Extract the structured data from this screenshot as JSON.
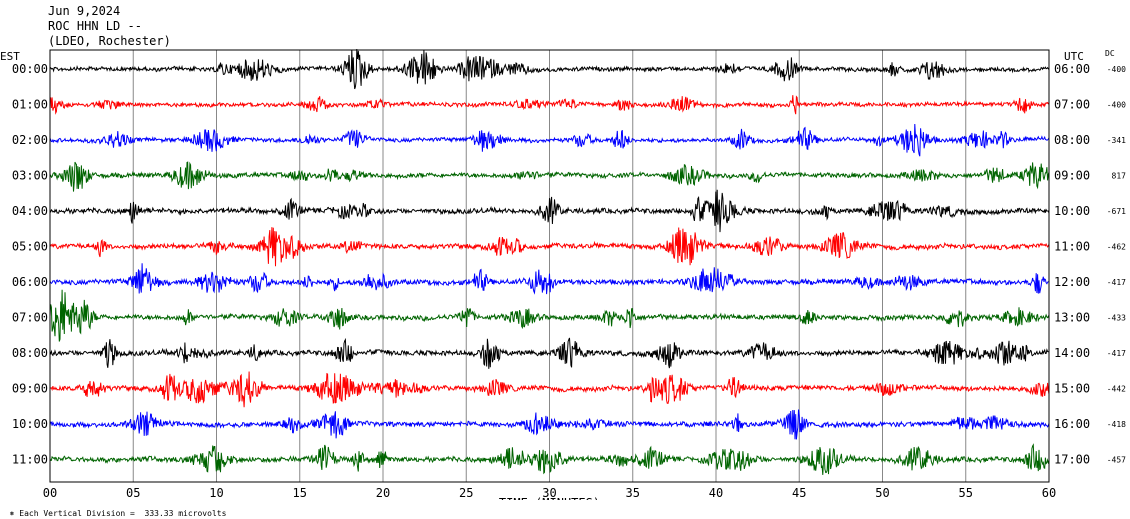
{
  "header": {
    "date": "Jun 9,2024",
    "station": "ROC HHN LD --",
    "network": "(LDEO, Rochester)"
  },
  "footer": {
    "division_note": "Each Vertical Division =  333.33 microvolts"
  },
  "chart_data": {
    "type": "line",
    "title": "",
    "xlabel": "TIME (MINUTES)",
    "left_axis_label": "EST",
    "right_axis_label": "UTC",
    "dc_label": "DC",
    "xlim": [
      0,
      60
    ],
    "x_ticks": [
      "00",
      "05",
      "10",
      "15",
      "20",
      "25",
      "30",
      "35",
      "40",
      "45",
      "50",
      "55",
      "60"
    ],
    "grid": true,
    "trace_colors": [
      "#000000",
      "#ff0000",
      "#0000ff",
      "#006400"
    ],
    "traces": [
      {
        "est": "00:00",
        "utc": "06:00",
        "dc": "-400",
        "color": "#000000",
        "amplitude": 0.8
      },
      {
        "est": "01:00",
        "utc": "07:00",
        "dc": "-400",
        "color": "#ff0000",
        "amplitude": 0.8
      },
      {
        "est": "02:00",
        "utc": "08:00",
        "dc": "-341",
        "color": "#0000ff",
        "amplitude": 0.8
      },
      {
        "est": "03:00",
        "utc": "09:00",
        "dc": "817",
        "color": "#006400",
        "amplitude": 0.9
      },
      {
        "est": "04:00",
        "utc": "10:00",
        "dc": "-671",
        "color": "#000000",
        "amplitude": 1.0
      },
      {
        "est": "05:00",
        "utc": "11:00",
        "dc": "-462",
        "color": "#ff0000",
        "amplitude": 1.0
      },
      {
        "est": "06:00",
        "utc": "12:00",
        "dc": "-417",
        "color": "#0000ff",
        "amplitude": 1.0
      },
      {
        "est": "07:00",
        "utc": "13:00",
        "dc": "-433",
        "color": "#006400",
        "amplitude": 1.0
      },
      {
        "est": "08:00",
        "utc": "14:00",
        "dc": "-417",
        "color": "#000000",
        "amplitude": 1.0
      },
      {
        "est": "09:00",
        "utc": "15:00",
        "dc": "-442",
        "color": "#ff0000",
        "amplitude": 1.0
      },
      {
        "est": "10:00",
        "utc": "16:00",
        "dc": "-418",
        "color": "#0000ff",
        "amplitude": 1.0
      },
      {
        "est": "11:00",
        "utc": "17:00",
        "dc": "-457",
        "color": "#006400",
        "amplitude": 1.0
      }
    ]
  }
}
